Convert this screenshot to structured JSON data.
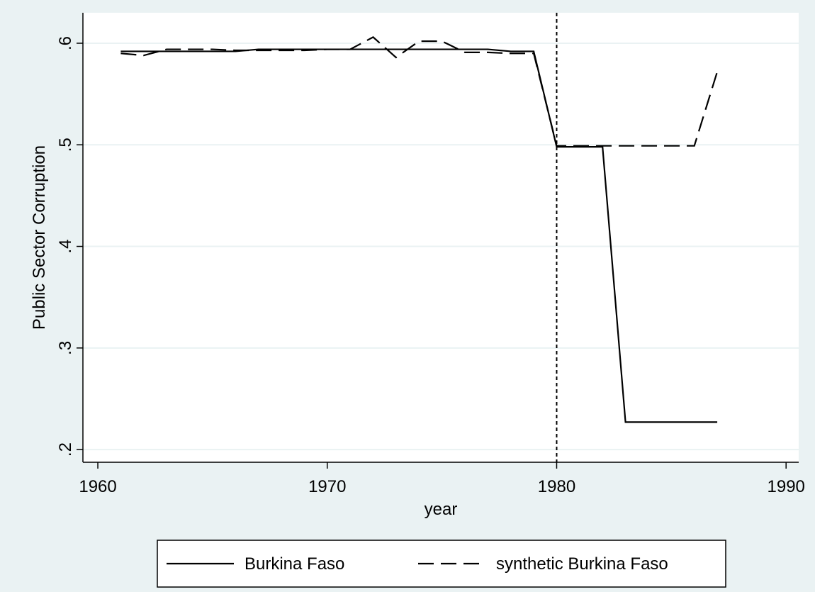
{
  "chart_data": {
    "type": "line",
    "x_label": "year",
    "y_label": "Public Sector Corruption",
    "x": [
      1961,
      1962,
      1963,
      1964,
      1965,
      1966,
      1967,
      1968,
      1969,
      1970,
      1971,
      1972,
      1973,
      1974,
      1975,
      1976,
      1977,
      1978,
      1979,
      1980,
      1981,
      1982,
      1983,
      1984,
      1985,
      1986,
      1987
    ],
    "series": [
      {
        "name": "Burkina Faso",
        "color": "#000000",
        "line_style": "solid",
        "values": [
          0.592,
          0.592,
          0.592,
          0.592,
          0.592,
          0.592,
          0.594,
          0.594,
          0.594,
          0.594,
          0.594,
          0.594,
          0.594,
          0.594,
          0.594,
          0.594,
          0.594,
          0.592,
          0.592,
          0.498,
          0.498,
          0.498,
          0.227,
          0.227,
          0.227,
          0.227,
          0.227
        ]
      },
      {
        "name": "synthetic Burkina Faso",
        "color": "#000000",
        "line_style": "dashed",
        "values": [
          0.59,
          0.588,
          0.594,
          0.594,
          0.594,
          0.593,
          0.593,
          0.593,
          0.593,
          0.594,
          0.594,
          0.606,
          0.586,
          0.602,
          0.602,
          0.591,
          0.591,
          0.59,
          0.59,
          0.499,
          0.499,
          0.499,
          0.499,
          0.499,
          0.499,
          0.499,
          0.572
        ]
      }
    ],
    "xline": 1980,
    "xlim": [
      1959.35,
      1990.55
    ],
    "xticks": [
      1960,
      1970,
      1980,
      1990
    ],
    "ylim": [
      0.1875,
      0.63
    ],
    "yticks": [
      {
        "value": 0.2,
        "label": ".2"
      },
      {
        "value": 0.3,
        "label": ".3"
      },
      {
        "value": 0.4,
        "label": ".4"
      },
      {
        "value": 0.5,
        "label": ".5"
      },
      {
        "value": 0.6,
        "label": ".6"
      }
    ],
    "grid": true,
    "legend": "bottom"
  }
}
